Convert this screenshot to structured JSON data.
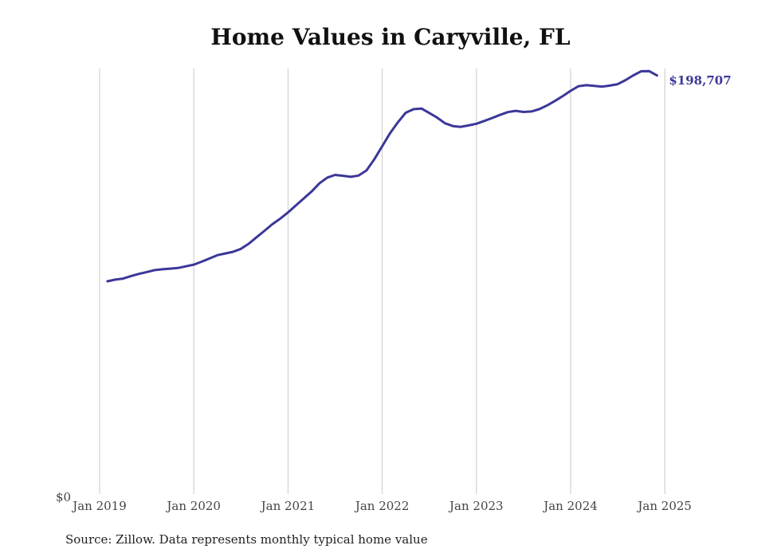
{
  "title": "Home Values in Caryville, FL",
  "source": "Source: Zillow. Data represents monthly typical home value",
  "colors": {
    "line": "#3b3799",
    "grid": "#c8c8c8",
    "text": "#444444"
  },
  "chart_data": {
    "type": "line",
    "title": "Home Values in Caryville, FL",
    "xlabel": "",
    "ylabel": "",
    "x_tick_labels": [
      "Jan 2019",
      "Jan 2020",
      "Jan 2021",
      "Jan 2022",
      "Jan 2023",
      "Jan 2024",
      "Jan 2025"
    ],
    "y_tick_labels": [
      "$0"
    ],
    "ylim": [
      0,
      202000
    ],
    "grid": "vertical",
    "end_label": "$198,707",
    "series": [
      {
        "values": [
          101000,
          101800,
          102300,
          103500,
          104500,
          105400,
          106300,
          106700,
          107000,
          107300,
          108100,
          108900,
          110300,
          111800,
          113400,
          114200,
          115000,
          116400,
          118800,
          121900,
          125000,
          128100,
          130700,
          133700,
          137000,
          140300,
          143600,
          147500,
          150200,
          151500,
          151100,
          150600,
          151200,
          153600,
          159000,
          165100,
          171300,
          176500,
          181000,
          182700,
          183000,
          180900,
          178700,
          176000,
          174700,
          174300,
          175000,
          175800,
          177100,
          178500,
          180000,
          181300,
          181900,
          181400,
          181600,
          182700,
          184500,
          186600,
          188900,
          191400,
          193600,
          194100,
          193800,
          193400,
          193900,
          194600,
          196500,
          198800,
          200700,
          200800,
          198707
        ]
      }
    ]
  }
}
